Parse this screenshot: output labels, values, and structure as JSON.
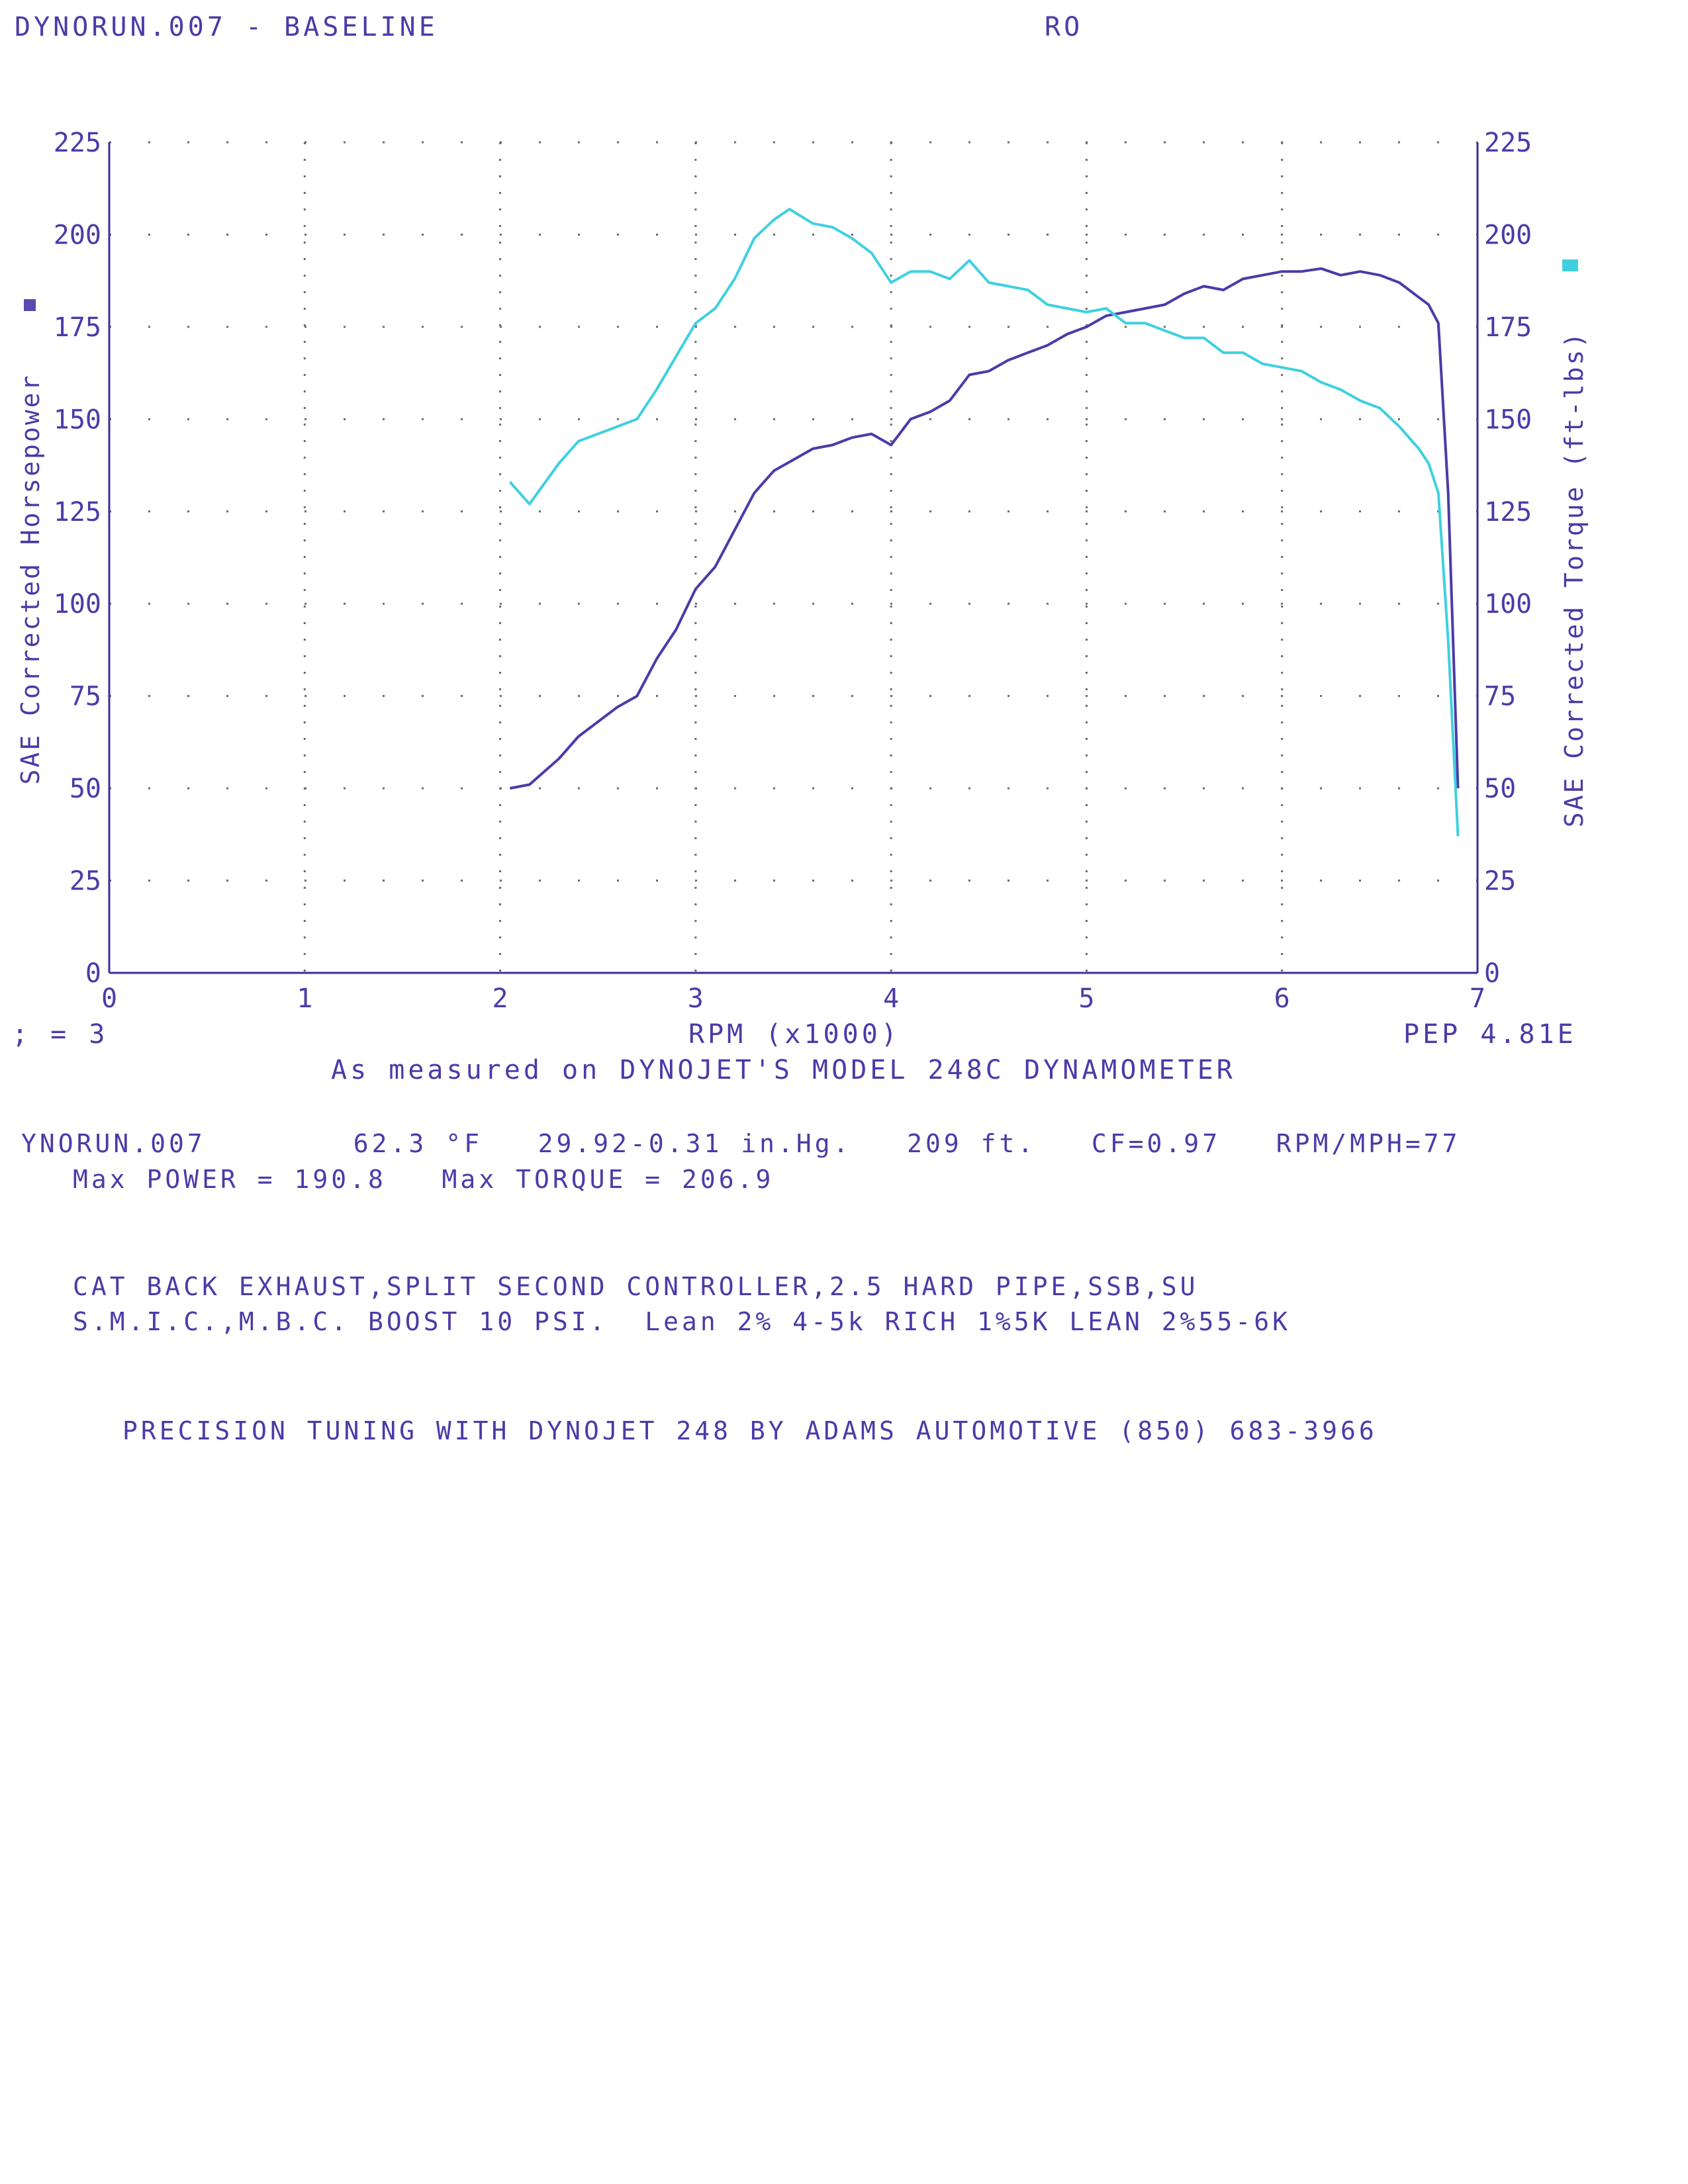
{
  "header": {
    "run_title": "DYNORUN.007 - BASELINE",
    "right_label": "RO"
  },
  "chart_data": {
    "type": "line",
    "title": "",
    "xlabel": "RPM (x1000)",
    "ylabel_left": "SAE Corrected Horsepower",
    "ylabel_right": "SAE Corrected Torque (ft-lbs)",
    "xlim": [
      0,
      7
    ],
    "ylim": [
      0,
      225
    ],
    "x_ticks": [
      "0",
      "1",
      "2",
      "3",
      "4",
      "5",
      "6",
      "7"
    ],
    "y_ticks": [
      "0",
      "25",
      "50",
      "75",
      "100",
      "125",
      "150",
      "175",
      "200",
      "225"
    ],
    "grid": true,
    "colors": {
      "horsepower": "#4b3ba8",
      "torque": "#3fd0e0",
      "axis": "#3a2e9a",
      "grid": "#6a6a6a"
    },
    "series": [
      {
        "name": "SAE Corrected Horsepower",
        "axis": "left",
        "points": [
          [
            2.05,
            50
          ],
          [
            2.15,
            51
          ],
          [
            2.3,
            58
          ],
          [
            2.4,
            64
          ],
          [
            2.5,
            68
          ],
          [
            2.6,
            72
          ],
          [
            2.7,
            75
          ],
          [
            2.8,
            85
          ],
          [
            2.9,
            93
          ],
          [
            3.0,
            104
          ],
          [
            3.1,
            110
          ],
          [
            3.2,
            120
          ],
          [
            3.3,
            130
          ],
          [
            3.4,
            136
          ],
          [
            3.5,
            139
          ],
          [
            3.6,
            142
          ],
          [
            3.7,
            143
          ],
          [
            3.8,
            145
          ],
          [
            3.9,
            146
          ],
          [
            4.0,
            143
          ],
          [
            4.1,
            150
          ],
          [
            4.2,
            152
          ],
          [
            4.3,
            155
          ],
          [
            4.4,
            162
          ],
          [
            4.5,
            163
          ],
          [
            4.6,
            166
          ],
          [
            4.7,
            168
          ],
          [
            4.8,
            170
          ],
          [
            4.9,
            173
          ],
          [
            5.0,
            175
          ],
          [
            5.1,
            178
          ],
          [
            5.2,
            179
          ],
          [
            5.3,
            180
          ],
          [
            5.4,
            181
          ],
          [
            5.5,
            184
          ],
          [
            5.6,
            186
          ],
          [
            5.7,
            185
          ],
          [
            5.8,
            188
          ],
          [
            5.9,
            189
          ],
          [
            6.0,
            190
          ],
          [
            6.1,
            190
          ],
          [
            6.2,
            190.8
          ],
          [
            6.3,
            189
          ],
          [
            6.4,
            190
          ],
          [
            6.5,
            189
          ],
          [
            6.6,
            187
          ],
          [
            6.7,
            183
          ],
          [
            6.75,
            181
          ],
          [
            6.8,
            176
          ],
          [
            6.85,
            130
          ],
          [
            6.9,
            50
          ]
        ]
      },
      {
        "name": "SAE Corrected Torque (ft-lbs)",
        "axis": "right",
        "points": [
          [
            2.05,
            133
          ],
          [
            2.15,
            127
          ],
          [
            2.3,
            138
          ],
          [
            2.4,
            144
          ],
          [
            2.5,
            146
          ],
          [
            2.6,
            148
          ],
          [
            2.7,
            150
          ],
          [
            2.8,
            158
          ],
          [
            2.9,
            167
          ],
          [
            3.0,
            176
          ],
          [
            3.1,
            180
          ],
          [
            3.2,
            188
          ],
          [
            3.3,
            199
          ],
          [
            3.4,
            204
          ],
          [
            3.48,
            206.9
          ],
          [
            3.6,
            203
          ],
          [
            3.7,
            202
          ],
          [
            3.8,
            199
          ],
          [
            3.9,
            195
          ],
          [
            4.0,
            187
          ],
          [
            4.1,
            190
          ],
          [
            4.2,
            190
          ],
          [
            4.3,
            188
          ],
          [
            4.4,
            193
          ],
          [
            4.5,
            187
          ],
          [
            4.6,
            186
          ],
          [
            4.7,
            185
          ],
          [
            4.8,
            181
          ],
          [
            4.9,
            180
          ],
          [
            5.0,
            179
          ],
          [
            5.1,
            180
          ],
          [
            5.2,
            176
          ],
          [
            5.3,
            176
          ],
          [
            5.4,
            174
          ],
          [
            5.5,
            172
          ],
          [
            5.6,
            172
          ],
          [
            5.7,
            168
          ],
          [
            5.8,
            168
          ],
          [
            5.9,
            165
          ],
          [
            6.0,
            164
          ],
          [
            6.1,
            163
          ],
          [
            6.2,
            160
          ],
          [
            6.3,
            158
          ],
          [
            6.4,
            155
          ],
          [
            6.5,
            153
          ],
          [
            6.6,
            148
          ],
          [
            6.7,
            142
          ],
          [
            6.75,
            138
          ],
          [
            6.8,
            130
          ],
          [
            6.85,
            90
          ],
          [
            6.9,
            37
          ]
        ]
      }
    ]
  },
  "footer": {
    "smoothing": "; = 3",
    "xlabel": "RPM (x1000)",
    "pep": "PEP 4.81E",
    "dyno_note": "As measured on DYNOJET'S MODEL 248C DYNAMOMETER",
    "conditions": "YNORUN.007        62.3 °F   29.92-0.31 in.Hg.   209 ft.   CF=0.97   RPM/MPH=77",
    "max_line": "Max POWER = 190.8   Max TORQUE = 206.9",
    "notes_1": "CAT BACK EXHAUST,SPLIT SECOND CONTROLLER,2.5 HARD PIPE,SSB,SU",
    "notes_2": "S.M.I.C.,M.B.C. BOOST 10 PSI.  Lean 2% 4-5k RICH 1%5K LEAN 2%55-6K",
    "shop": "PRECISION TUNING WITH DYNOJET 248 BY ADAMS AUTOMOTIVE (850) 683-3966"
  }
}
